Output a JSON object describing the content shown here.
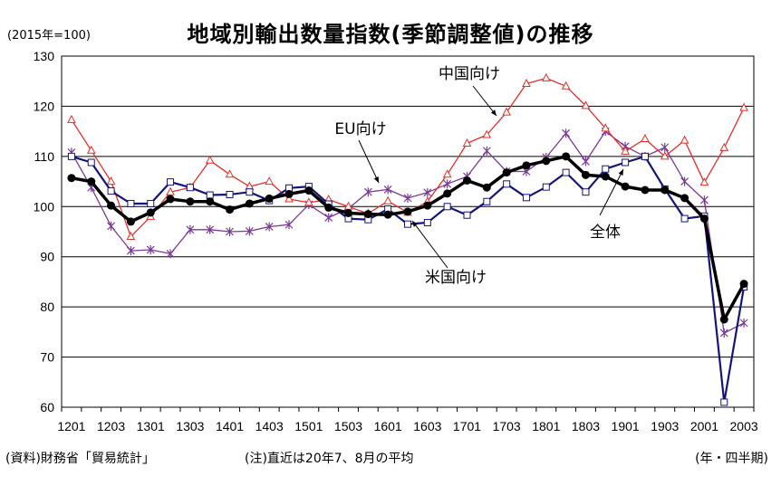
{
  "chart_data": {
    "type": "line",
    "title": "地域別輸出数量指数(季節調整値)の推移",
    "unit_label": "(2015年=100)",
    "source": "(資料)財務省「貿易統計」",
    "note": "(注)直近は20年7、8月の平均",
    "xlabel": "(年・四半期)",
    "ylabel": "",
    "ylim": [
      60,
      130
    ],
    "yticks": [
      60,
      70,
      80,
      90,
      100,
      110,
      120,
      130
    ],
    "grid": true,
    "x": [
      "1201",
      "1202",
      "1203",
      "1204",
      "1301",
      "1302",
      "1303",
      "1304",
      "1401",
      "1402",
      "1403",
      "1404",
      "1501",
      "1502",
      "1503",
      "1504",
      "1601",
      "1602",
      "1603",
      "1604",
      "1701",
      "1702",
      "1703",
      "1704",
      "1801",
      "1802",
      "1803",
      "1804",
      "1901",
      "1902",
      "1903",
      "1904",
      "2001",
      "2002",
      "2003"
    ],
    "xtick_labels": [
      "1201",
      "1203",
      "1301",
      "1303",
      "1401",
      "1403",
      "1501",
      "1503",
      "1601",
      "1603",
      "1701",
      "1703",
      "1801",
      "1803",
      "1901",
      "1903",
      "2001",
      "2003"
    ],
    "series": [
      {
        "name": "全体",
        "color": "#000000",
        "marker": "filled-circle",
        "values": [
          105.7,
          105.0,
          100.2,
          97.0,
          98.8,
          101.5,
          101.0,
          101.0,
          99.4,
          100.6,
          101.6,
          102.5,
          103.2,
          99.8,
          98.7,
          98.5,
          98.4,
          99.0,
          100.2,
          102.6,
          105.2,
          103.8,
          106.8,
          108.2,
          109.1,
          110.0,
          106.3,
          106.0,
          104.0,
          103.3,
          103.3,
          101.7,
          97.6,
          77.5,
          84.6
        ]
      },
      {
        "name": "米国向け",
        "color": "#14147a",
        "marker": "open-square",
        "values": [
          110.0,
          108.8,
          103.1,
          100.6,
          100.6,
          104.9,
          103.8,
          102.3,
          102.4,
          102.9,
          101.2,
          103.7,
          104.0,
          100.5,
          97.6,
          97.4,
          99.5,
          96.5,
          96.8,
          100.0,
          98.3,
          101.0,
          104.5,
          101.8,
          103.9,
          106.8,
          102.9,
          107.5,
          108.8,
          110.0,
          103.5,
          97.6,
          98.1,
          61.0,
          84.0
        ]
      },
      {
        "name": "中国向け",
        "color": "#e0302a",
        "marker": "open-triangle",
        "values": [
          117.3,
          111.2,
          105.0,
          94.0,
          98.0,
          102.9,
          103.8,
          109.2,
          106.4,
          104.0,
          105.0,
          101.5,
          100.8,
          101.4,
          100.0,
          98.6,
          101.1,
          98.8,
          101.0,
          106.4,
          112.6,
          114.3,
          118.8,
          124.5,
          125.6,
          124.0,
          120.1,
          115.6,
          111.0,
          113.5,
          110.0,
          113.2,
          104.8,
          111.7,
          119.7
        ]
      },
      {
        "name": "EU向け",
        "color": "#7a3a96",
        "marker": "star",
        "values": [
          110.8,
          103.8,
          96.1,
          91.2,
          91.4,
          90.6,
          95.4,
          95.4,
          95.0,
          95.1,
          96.0,
          96.4,
          100.4,
          97.8,
          99.6,
          102.9,
          103.4,
          101.7,
          102.8,
          104.5,
          106.0,
          111.1,
          107.0,
          107.0,
          109.8,
          114.6,
          109.0,
          115.0,
          112.0,
          110.0,
          111.8,
          105.0,
          101.3,
          74.8,
          76.8
        ]
      }
    ],
    "annotations": [
      {
        "text": "中国向け",
        "series": "中国向け"
      },
      {
        "text": "EU向け",
        "series": "EU向け"
      },
      {
        "text": "米国向け",
        "series": "米国向け"
      },
      {
        "text": "全体",
        "series": "全体"
      }
    ]
  }
}
